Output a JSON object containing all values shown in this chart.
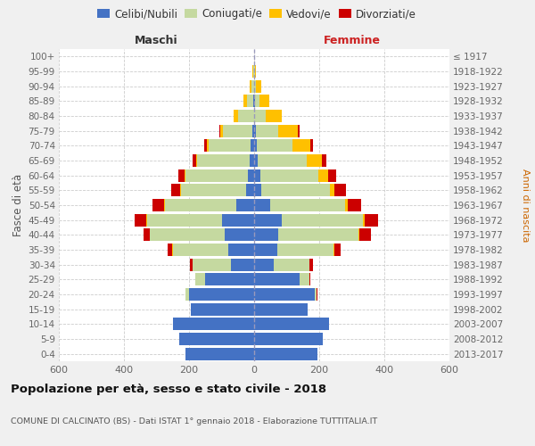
{
  "age_groups": [
    "0-4",
    "5-9",
    "10-14",
    "15-19",
    "20-24",
    "25-29",
    "30-34",
    "35-39",
    "40-44",
    "45-49",
    "50-54",
    "55-59",
    "60-64",
    "65-69",
    "70-74",
    "75-79",
    "80-84",
    "85-89",
    "90-94",
    "95-99",
    "100+"
  ],
  "birth_years": [
    "2013-2017",
    "2008-2012",
    "2003-2007",
    "1998-2002",
    "1993-1997",
    "1988-1992",
    "1983-1987",
    "1978-1982",
    "1973-1977",
    "1968-1972",
    "1963-1967",
    "1958-1962",
    "1953-1957",
    "1948-1952",
    "1943-1947",
    "1938-1942",
    "1933-1937",
    "1928-1932",
    "1923-1927",
    "1918-1922",
    "≤ 1917"
  ],
  "males": {
    "celibi": [
      210,
      230,
      250,
      195,
      200,
      150,
      70,
      80,
      90,
      100,
      55,
      25,
      20,
      15,
      10,
      5,
      0,
      2,
      0,
      0,
      0
    ],
    "coniugati": [
      0,
      0,
      0,
      0,
      10,
      30,
      120,
      170,
      230,
      230,
      220,
      200,
      190,
      160,
      130,
      90,
      50,
      20,
      8,
      4,
      1
    ],
    "vedovi": [
      0,
      0,
      0,
      0,
      0,
      0,
      0,
      1,
      1,
      2,
      2,
      2,
      3,
      4,
      5,
      8,
      12,
      10,
      6,
      2,
      0
    ],
    "divorziati": [
      0,
      0,
      0,
      0,
      1,
      2,
      8,
      15,
      20,
      35,
      35,
      28,
      20,
      10,
      8,
      5,
      0,
      0,
      0,
      0,
      0
    ]
  },
  "females": {
    "nubili": [
      195,
      210,
      230,
      165,
      185,
      140,
      60,
      70,
      75,
      85,
      50,
      22,
      18,
      12,
      8,
      5,
      0,
      2,
      0,
      0,
      0
    ],
    "coniugate": [
      0,
      0,
      0,
      0,
      8,
      30,
      110,
      175,
      245,
      250,
      230,
      210,
      180,
      150,
      110,
      70,
      35,
      15,
      6,
      3,
      1
    ],
    "vedove": [
      0,
      0,
      0,
      0,
      0,
      0,
      1,
      2,
      3,
      5,
      8,
      15,
      30,
      45,
      55,
      60,
      50,
      30,
      16,
      3,
      0
    ],
    "divorziate": [
      0,
      0,
      0,
      0,
      1,
      2,
      10,
      20,
      35,
      40,
      40,
      35,
      25,
      15,
      9,
      6,
      0,
      0,
      0,
      0,
      0
    ]
  },
  "color_celibi": "#4472c4",
  "color_coniugati": "#c5d9a0",
  "color_vedovi": "#ffc000",
  "color_divorziati": "#cc0000",
  "xlim": 600,
  "title": "Popolazione per età, sesso e stato civile - 2018",
  "subtitle": "COMUNE DI CALCINATO (BS) - Dati ISTAT 1° gennaio 2018 - Elaborazione TUTTITALIA.IT",
  "ylabel_left": "Fasce di età",
  "ylabel_right": "Anni di nascita",
  "xlabel_maschi": "Maschi",
  "xlabel_femmine": "Femmine",
  "bg_color": "#f0f0f0",
  "plot_bg_color": "#ffffff"
}
